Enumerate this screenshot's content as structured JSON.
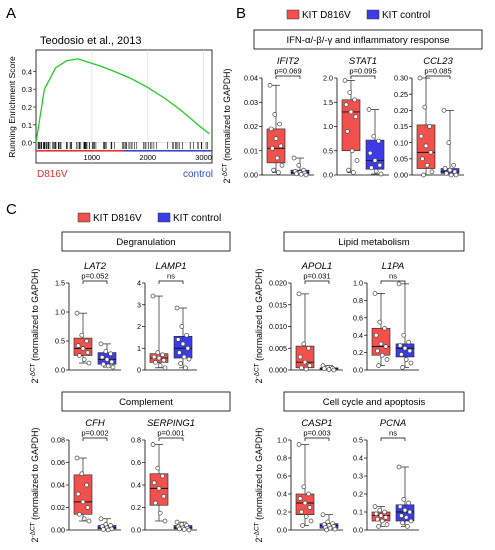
{
  "panel_letters": {
    "a": "A",
    "b": "B",
    "c": "C"
  },
  "gsea": {
    "citation": "Teodosio et al., 2013",
    "ylabel": "Running Enrichment Score",
    "left_label": "D816V",
    "right_label": "control",
    "left_color": "#e8322e",
    "right_color": "#2f4fc9",
    "curve_color": "#22cc22"
  },
  "legend": {
    "kit_d816v": "KIT D816V",
    "kit_control": "KIT control"
  },
  "colors": {
    "d816v": "#f0514d",
    "control": "#3c3ce6"
  },
  "ylabel_prefix": "2",
  "ylabel_sup": "-ΔCT",
  "ylabel_suffix": " (normalized to GAPDH)",
  "groups": {
    "ifn": "IFN-α/-β/-γ and inflammatory response",
    "degran": "Degranulation",
    "lipid": "Lipid metabolism",
    "complement": "Complement",
    "cellcycle": "Cell cycle and apoptosis"
  },
  "chart_data": [
    {
      "type": "line",
      "title": "Teodosio et al., 2013",
      "ylabel": "Running Enrichment Score",
      "x": [
        0,
        150,
        350,
        550,
        750,
        950,
        1150,
        1400,
        1700,
        2000,
        2300,
        2600,
        2900,
        3100
      ],
      "y": [
        0.0,
        0.3,
        0.42,
        0.46,
        0.47,
        0.45,
        0.43,
        0.4,
        0.36,
        0.31,
        0.25,
        0.18,
        0.1,
        0.05
      ],
      "xticks": [
        "1000",
        "2000",
        "3000"
      ],
      "yticks": [
        "0.0",
        "0.1",
        "0.2",
        "0.3",
        "0.4"
      ],
      "xlim": [
        0,
        3150
      ],
      "ylim": [
        -0.03,
        0.52
      ]
    },
    {
      "type": "box",
      "gene": "IFIT2",
      "pvalue": "p=0.069",
      "yticks": [
        "0.00",
        "0.01",
        "0.02",
        "0.03",
        "0.04"
      ],
      "ylim": [
        0,
        0.04
      ],
      "series": [
        {
          "name": "KIT D816V",
          "min": 0.001,
          "q1": 0.005,
          "median": 0.011,
          "q3": 0.019,
          "max": 0.037,
          "points": [
            0.037,
            0.025,
            0.021,
            0.019,
            0.015,
            0.012,
            0.011,
            0.007,
            0.004,
            0.002,
            0.001
          ]
        },
        {
          "name": "KIT control",
          "min": 0.0,
          "q1": 0.0005,
          "median": 0.001,
          "q3": 0.002,
          "max": 0.007,
          "points": [
            0.007,
            0.004,
            0.002,
            0.0015,
            0.001,
            0.0008,
            0.0005,
            0.0003,
            0.0
          ]
        }
      ]
    },
    {
      "type": "box",
      "gene": "STAT1",
      "pvalue": "p=0.095",
      "yticks": [
        "0.0",
        "0.5",
        "1.0",
        "1.5",
        "2.0"
      ],
      "ylim": [
        0,
        2.0
      ],
      "series": [
        {
          "name": "KIT D816V",
          "min": 0.05,
          "q1": 0.5,
          "median": 1.3,
          "q3": 1.55,
          "max": 1.95,
          "points": [
            1.95,
            1.7,
            1.55,
            1.45,
            1.3,
            1.2,
            0.9,
            0.5,
            0.3,
            0.1,
            0.05
          ]
        },
        {
          "name": "KIT control",
          "min": 0.02,
          "q1": 0.12,
          "median": 0.3,
          "q3": 0.72,
          "max": 1.35,
          "points": [
            1.35,
            0.8,
            0.7,
            0.45,
            0.3,
            0.2,
            0.15,
            0.08,
            0.02
          ]
        }
      ]
    },
    {
      "type": "box",
      "gene": "CCL23",
      "pvalue": "p=0.085",
      "yticks": [
        "0.00",
        "0.05",
        "0.10",
        "0.15",
        "0.20",
        "0.25",
        "0.30"
      ],
      "ylim": [
        0,
        0.3
      ],
      "series": [
        {
          "name": "KIT D816V",
          "min": 0.0,
          "q1": 0.02,
          "median": 0.07,
          "q3": 0.155,
          "max": 0.3,
          "points": [
            0.3,
            0.21,
            0.15,
            0.12,
            0.09,
            0.07,
            0.05,
            0.03,
            0.01,
            0.0
          ]
        },
        {
          "name": "KIT control",
          "min": 0.0,
          "q1": 0.005,
          "median": 0.01,
          "q3": 0.02,
          "max": 0.2,
          "points": [
            0.2,
            0.1,
            0.03,
            0.02,
            0.015,
            0.01,
            0.005,
            0.0,
            0.0
          ]
        }
      ]
    },
    {
      "type": "box",
      "gene": "LAT2",
      "pvalue": "p=0.052",
      "yticks": [
        "0.0",
        "0.5",
        "1.0",
        "1.5"
      ],
      "ylim": [
        0,
        1.5
      ],
      "series": [
        {
          "name": "KIT D816V",
          "min": 0.12,
          "q1": 0.25,
          "median": 0.37,
          "q3": 0.55,
          "max": 0.98,
          "points": [
            0.98,
            0.6,
            0.5,
            0.42,
            0.37,
            0.3,
            0.25,
            0.18,
            0.12
          ]
        },
        {
          "name": "KIT control",
          "min": 0.05,
          "q1": 0.1,
          "median": 0.18,
          "q3": 0.3,
          "max": 0.45,
          "points": [
            0.45,
            0.32,
            0.28,
            0.22,
            0.18,
            0.14,
            0.1,
            0.07,
            0.05
          ]
        }
      ]
    },
    {
      "type": "box",
      "gene": "LAMP1",
      "pvalue": "ns",
      "yticks": [
        "0",
        "1",
        "2",
        "3",
        "4"
      ],
      "ylim": [
        0,
        4
      ],
      "series": [
        {
          "name": "KIT D816V",
          "min": 0.1,
          "q1": 0.35,
          "median": 0.55,
          "q3": 0.75,
          "max": 3.4,
          "points": [
            3.4,
            0.8,
            0.7,
            0.6,
            0.55,
            0.45,
            0.35,
            0.2,
            0.1
          ]
        },
        {
          "name": "KIT control",
          "min": 0.1,
          "q1": 0.55,
          "median": 1.0,
          "q3": 1.55,
          "max": 2.85,
          "points": [
            2.85,
            2.0,
            1.6,
            1.4,
            1.2,
            1.0,
            0.8,
            0.6,
            0.5,
            0.3,
            0.1
          ]
        }
      ]
    },
    {
      "type": "box",
      "gene": "APOL1",
      "pvalue": "p=0.031",
      "yticks": [
        "0.000",
        "0.005",
        "0.010",
        "0.015",
        "0.020"
      ],
      "ylim": [
        0,
        0.02
      ],
      "series": [
        {
          "name": "KIT D816V",
          "min": 0.0,
          "q1": 0.0005,
          "median": 0.0018,
          "q3": 0.0055,
          "max": 0.0175,
          "points": [
            0.0175,
            0.006,
            0.005,
            0.003,
            0.0018,
            0.001,
            0.0005,
            0.0002
          ]
        },
        {
          "name": "KIT control",
          "min": 0.0,
          "q1": 0.0001,
          "median": 0.0003,
          "q3": 0.0005,
          "max": 0.001,
          "points": [
            0.001,
            0.0006,
            0.0004,
            0.0003,
            0.0001,
            0.0
          ]
        }
      ]
    },
    {
      "type": "box",
      "gene": "L1PA",
      "pvalue": "ns",
      "yticks": [
        "0.0",
        "0.2",
        "0.4",
        "0.6",
        "0.8",
        "1.0"
      ],
      "ylim": [
        0,
        1.0
      ],
      "series": [
        {
          "name": "KIT D816V",
          "min": 0.05,
          "q1": 0.17,
          "median": 0.27,
          "q3": 0.48,
          "max": 0.88,
          "points": [
            0.88,
            0.55,
            0.48,
            0.4,
            0.3,
            0.27,
            0.22,
            0.17,
            0.12,
            0.05
          ]
        },
        {
          "name": "KIT control",
          "min": 0.03,
          "q1": 0.15,
          "median": 0.25,
          "q3": 0.3,
          "max": 0.99,
          "points": [
            0.99,
            0.4,
            0.32,
            0.28,
            0.25,
            0.22,
            0.18,
            0.12,
            0.08,
            0.03
          ]
        }
      ]
    },
    {
      "type": "box",
      "gene": "CFH",
      "pvalue": "p=0.002",
      "yticks": [
        "0.00",
        "0.02",
        "0.04",
        "0.06",
        "0.08"
      ],
      "ylim": [
        0,
        0.08
      ],
      "series": [
        {
          "name": "KIT D816V",
          "min": 0.008,
          "q1": 0.014,
          "median": 0.025,
          "q3": 0.049,
          "max": 0.064,
          "points": [
            0.064,
            0.05,
            0.04,
            0.032,
            0.025,
            0.02,
            0.014,
            0.01,
            0.008
          ]
        },
        {
          "name": "KIT control",
          "min": 0.0,
          "q1": 0.001,
          "median": 0.002,
          "q3": 0.004,
          "max": 0.01,
          "points": [
            0.01,
            0.005,
            0.004,
            0.003,
            0.002,
            0.001,
            0.0005,
            0.0
          ]
        }
      ]
    },
    {
      "type": "box",
      "gene": "SERPING1",
      "pvalue": "p=0.001",
      "yticks": [
        "0.0",
        "0.2",
        "0.4",
        "0.6",
        "0.8"
      ],
      "ylim": [
        0,
        0.8
      ],
      "series": [
        {
          "name": "KIT D816V",
          "min": 0.08,
          "q1": 0.22,
          "median": 0.37,
          "q3": 0.5,
          "max": 0.76,
          "points": [
            0.76,
            0.55,
            0.48,
            0.42,
            0.37,
            0.3,
            0.24,
            0.15,
            0.08
          ]
        },
        {
          "name": "KIT control",
          "min": 0.0,
          "q1": 0.01,
          "median": 0.02,
          "q3": 0.04,
          "max": 0.07,
          "points": [
            0.07,
            0.05,
            0.04,
            0.03,
            0.02,
            0.015,
            0.01,
            0.005,
            0.0
          ]
        }
      ]
    },
    {
      "type": "box",
      "gene": "CASP1",
      "pvalue": "p=0.003",
      "yticks": [
        "0.0",
        "0.2",
        "0.4",
        "0.6",
        "0.8",
        "1.0"
      ],
      "ylim": [
        0,
        1.0
      ],
      "series": [
        {
          "name": "KIT D816V",
          "min": 0.05,
          "q1": 0.17,
          "median": 0.3,
          "q3": 0.4,
          "max": 0.95,
          "points": [
            0.95,
            0.48,
            0.4,
            0.35,
            0.3,
            0.25,
            0.2,
            0.15,
            0.1,
            0.05
          ]
        },
        {
          "name": "KIT control",
          "min": 0.0,
          "q1": 0.02,
          "median": 0.05,
          "q3": 0.07,
          "max": 0.17,
          "points": [
            0.17,
            0.09,
            0.07,
            0.06,
            0.05,
            0.04,
            0.03,
            0.02,
            0.01,
            0.0
          ]
        }
      ]
    },
    {
      "type": "box",
      "gene": "PCNA",
      "pvalue": "ns",
      "yticks": [
        "0.0",
        "0.1",
        "0.2",
        "0.3",
        "0.4",
        "0.5"
      ],
      "ylim": [
        0,
        0.5
      ],
      "series": [
        {
          "name": "KIT D816V",
          "min": 0.02,
          "q1": 0.05,
          "median": 0.08,
          "q3": 0.1,
          "max": 0.13,
          "points": [
            0.13,
            0.11,
            0.1,
            0.09,
            0.08,
            0.07,
            0.06,
            0.05,
            0.03,
            0.02
          ]
        },
        {
          "name": "KIT control",
          "min": 0.02,
          "q1": 0.05,
          "median": 0.1,
          "q3": 0.14,
          "max": 0.35,
          "points": [
            0.35,
            0.17,
            0.15,
            0.13,
            0.11,
            0.1,
            0.08,
            0.07,
            0.05,
            0.04,
            0.02
          ]
        }
      ]
    }
  ]
}
